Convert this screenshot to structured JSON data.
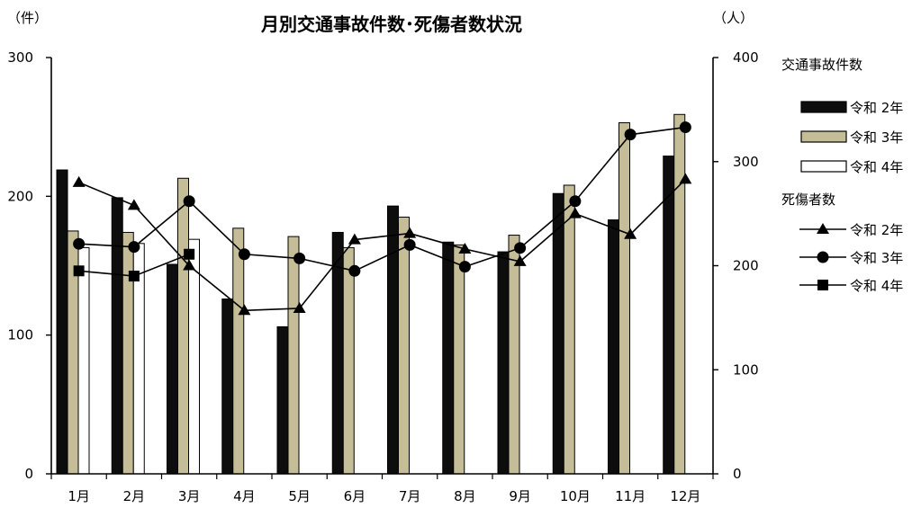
{
  "chart_data": {
    "type": "bar",
    "title": "月別交通事故件数･死傷者数状況",
    "y_left_unit": "（件）",
    "y_right_unit": "（人）",
    "categories": [
      "1月",
      "2月",
      "3月",
      "4月",
      "5月",
      "6月",
      "7月",
      "8月",
      "9月",
      "10月",
      "11月",
      "12月"
    ],
    "ylim_left": [
      0,
      300
    ],
    "ylim_right": [
      0,
      400
    ],
    "yticks_left": [
      "0",
      "100",
      "200",
      "300"
    ],
    "yticks_right": [
      "0",
      "100",
      "200",
      "300",
      "400"
    ],
    "grid": false,
    "legend_position": "right",
    "bar_group_title": "交通事故件数",
    "line_group_title": "死傷者数",
    "bar_series": [
      {
        "name": "令和 2年",
        "color": "#0d0d0d",
        "values": [
          219,
          199,
          151,
          126,
          106,
          174,
          193,
          167,
          160,
          202,
          183,
          229
        ]
      },
      {
        "name": "令和 3年",
        "color": "#c4bd97",
        "values": [
          175,
          174,
          213,
          177,
          171,
          163,
          185,
          165,
          172,
          208,
          253,
          259
        ]
      },
      {
        "name": "令和 4年",
        "color": "#ffffff",
        "values": [
          163,
          166,
          169,
          null,
          null,
          null,
          null,
          null,
          null,
          null,
          null,
          null
        ]
      }
    ],
    "line_series": [
      {
        "name": "令和 2年",
        "marker": "triangle",
        "values": [
          280,
          258,
          200,
          157,
          159,
          225,
          231,
          216,
          204,
          250,
          230,
          283
        ]
      },
      {
        "name": "令和 3年",
        "marker": "circle",
        "values": [
          221,
          218,
          262,
          211,
          207,
          195,
          220,
          199,
          217,
          262,
          326,
          333
        ]
      },
      {
        "name": "令和 4年",
        "marker": "square",
        "values": [
          195,
          190,
          211,
          null,
          null,
          null,
          null,
          null,
          null,
          null,
          null,
          null
        ]
      }
    ]
  }
}
